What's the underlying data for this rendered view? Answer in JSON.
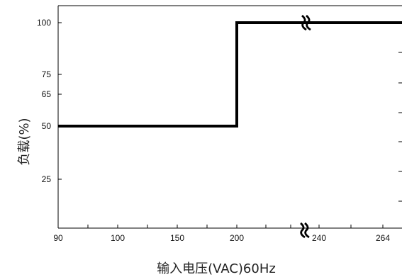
{
  "chart_data": {
    "type": "line",
    "title": "",
    "xlabel": "输入电压(VAC)60Hz",
    "ylabel": "负载(%)",
    "x_ticks": [
      {
        "label": "90",
        "value": 90
      },
      {
        "label": "100",
        "value": 100
      },
      {
        "label": "150",
        "value": 150
      },
      {
        "label": "200",
        "value": 200
      },
      {
        "label": "240",
        "value": 240
      },
      {
        "label": "264",
        "value": 264
      }
    ],
    "y_ticks": [
      {
        "label": "100",
        "value": 100
      },
      {
        "label": "75",
        "value": 75
      },
      {
        "label": "65",
        "value": 65
      },
      {
        "label": "50",
        "value": 50
      },
      {
        "label": "25",
        "value": 25
      }
    ],
    "ylim": [
      0,
      110
    ],
    "x_axis_break_between": [
      200,
      240
    ],
    "grid": false,
    "series": [
      {
        "x": [
          90,
          200,
          200,
          264
        ],
        "y": [
          50,
          50,
          100,
          100
        ]
      }
    ],
    "line_color": "#000000"
  }
}
